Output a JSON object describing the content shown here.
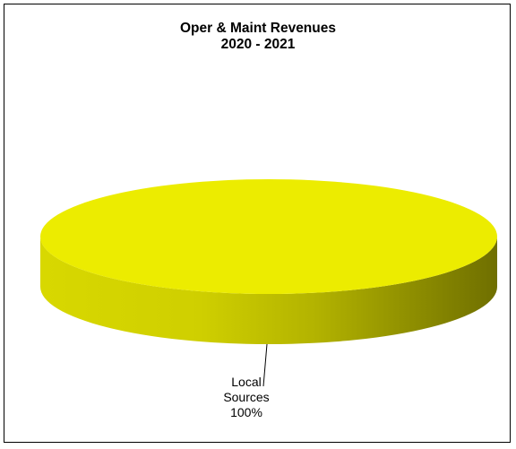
{
  "chart_data": {
    "type": "pie",
    "title_line1": "Oper & Maint Revenues",
    "title_line2": "2020 - 2021",
    "slices": [
      {
        "label_line1": "Local",
        "label_line2": "Sources",
        "percent_text": "100%",
        "value": 100,
        "color": "#ecec00"
      }
    ],
    "three_d": true
  }
}
